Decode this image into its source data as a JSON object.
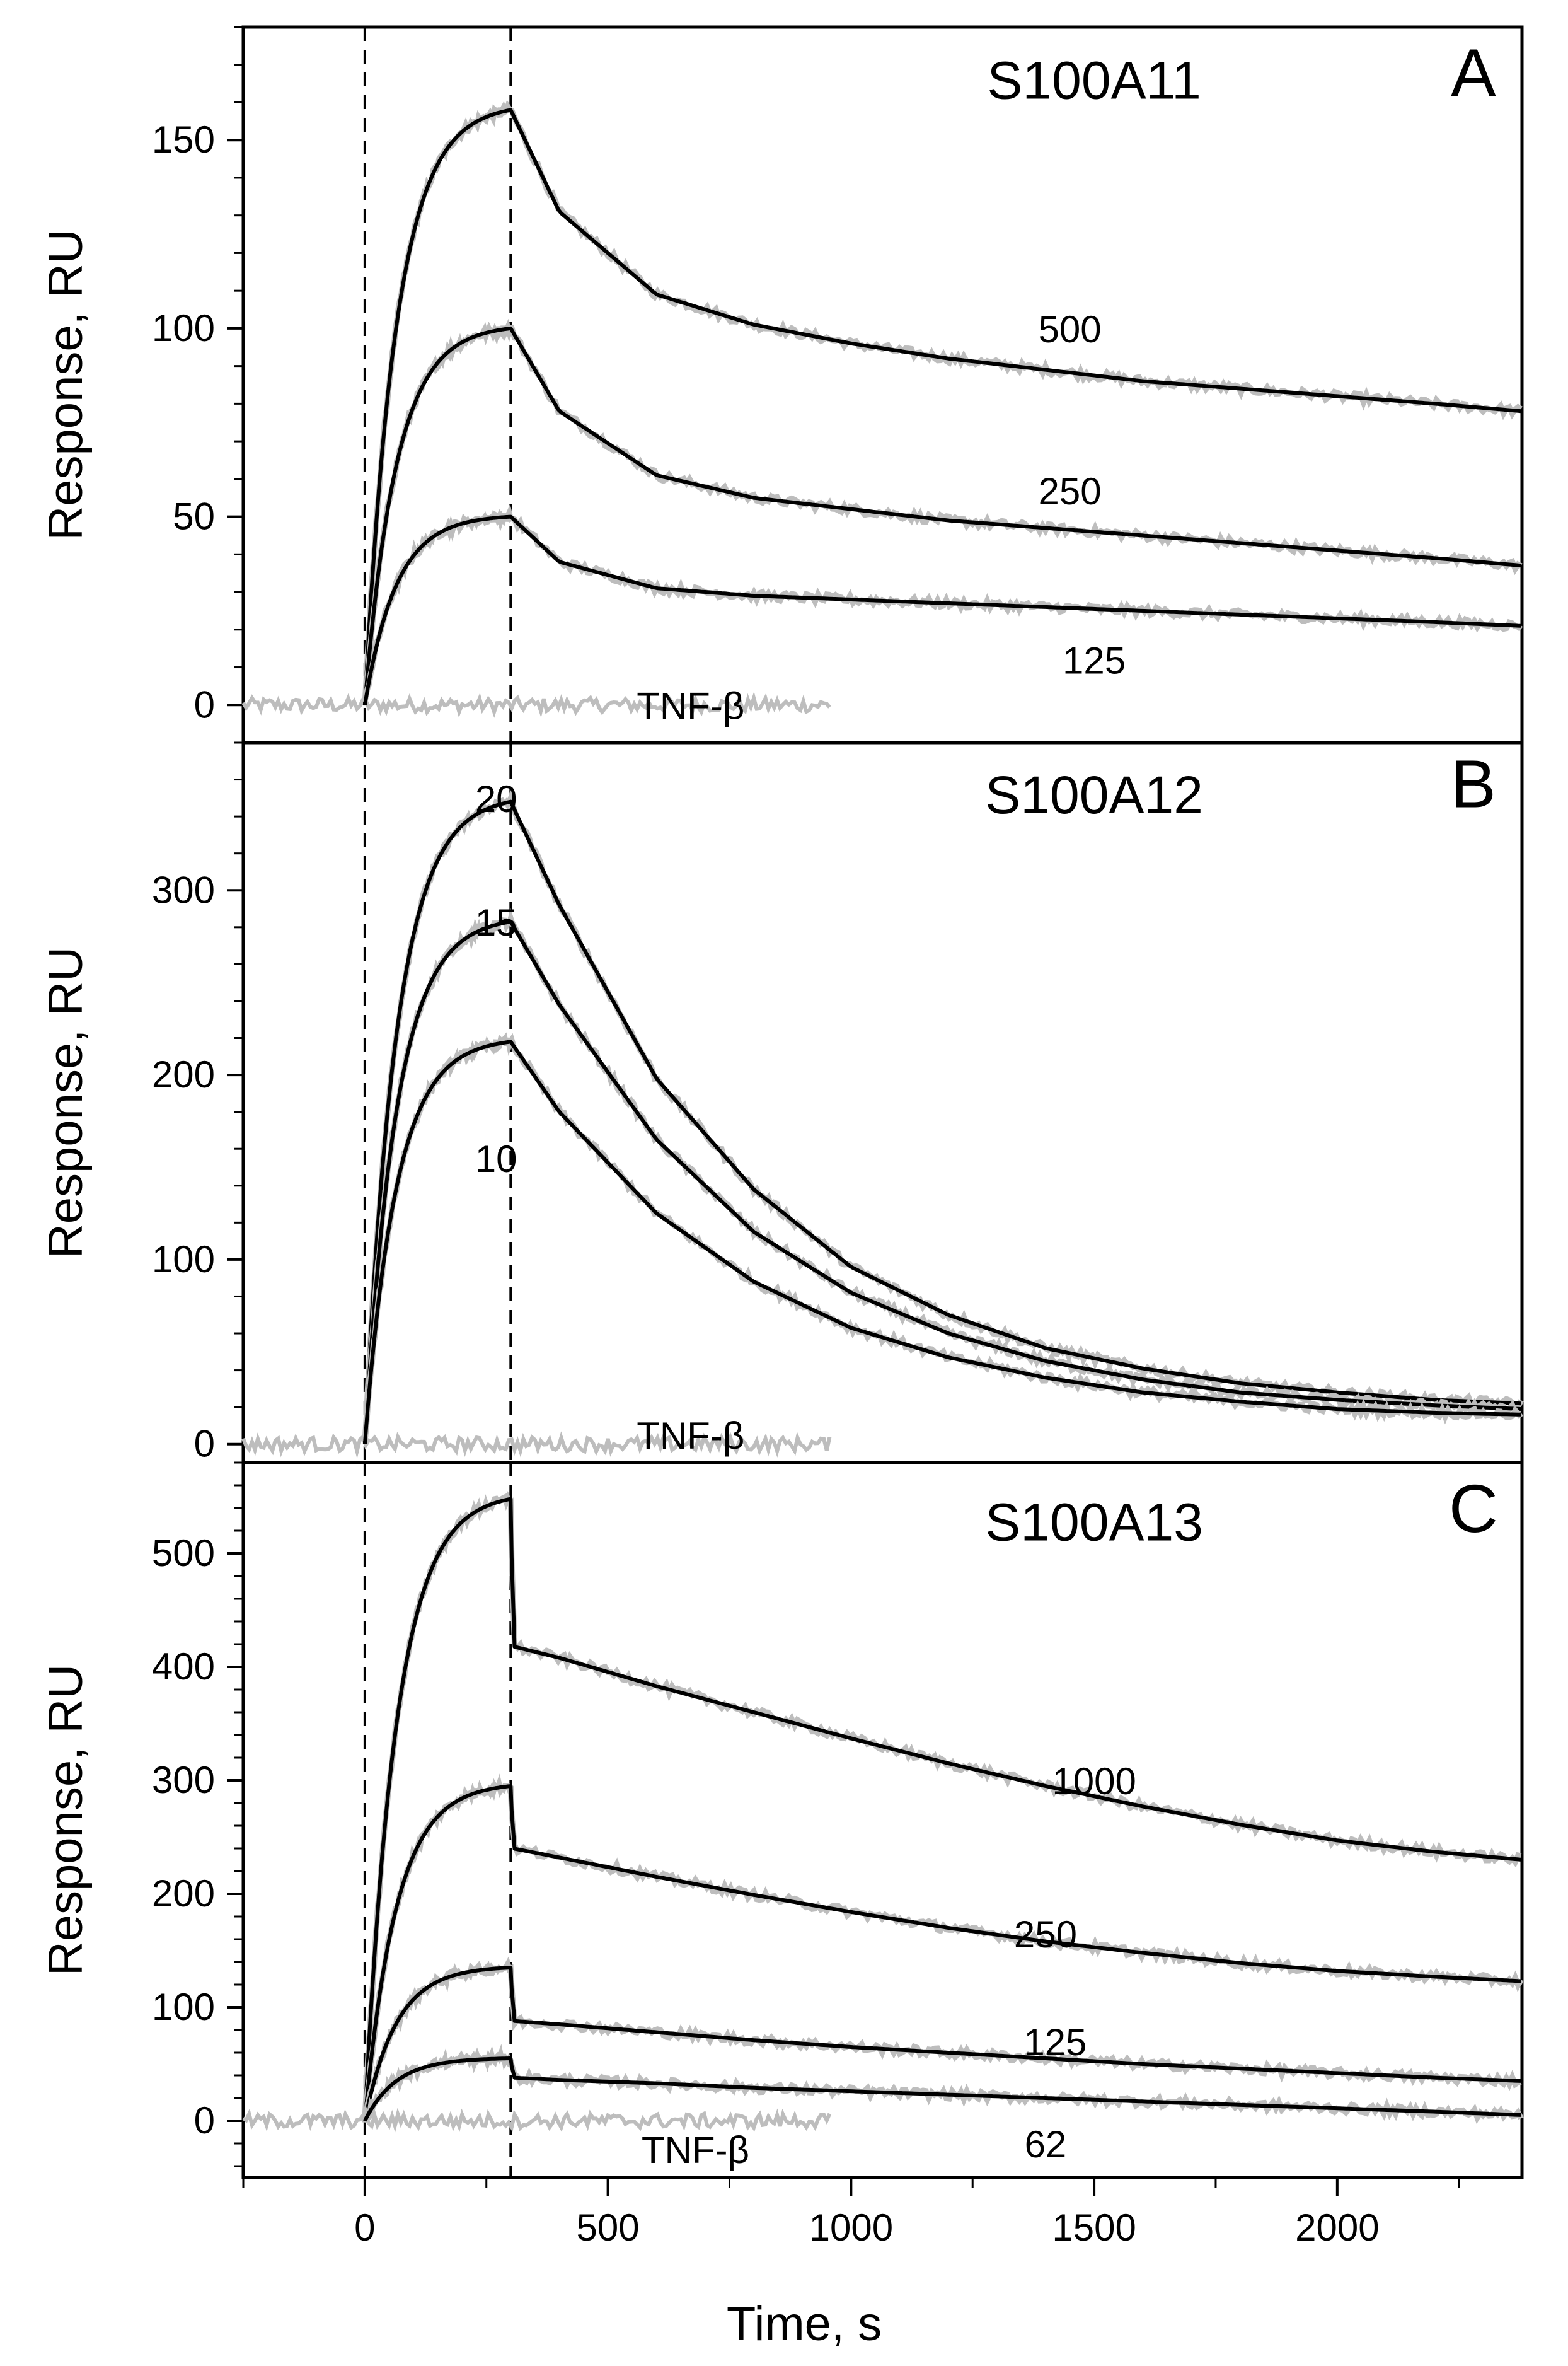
{
  "figure": {
    "xlabel": "Time, s",
    "xticks": [
      0,
      500,
      1000,
      1500,
      2000
    ]
  },
  "chart_data": [
    {
      "type": "line",
      "panel": "A",
      "title": "S100A11",
      "ylabel": "Response, RU",
      "xlim": [
        -250,
        2380
      ],
      "ylim": [
        -10,
        180
      ],
      "yticks": [
        0,
        50,
        100,
        150
      ],
      "injection_start": 0,
      "injection_end": 300,
      "baseline_label": "TNF-β",
      "series": [
        {
          "label": "500",
          "peak": 158,
          "x": [
            0,
            300,
            400,
            600,
            800,
            1000,
            1200,
            1400,
            1600,
            1800,
            2000,
            2200,
            2380
          ],
          "y": [
            0,
            158,
            131,
            109,
            101,
            96,
            92,
            89,
            86,
            84,
            82,
            80,
            78
          ]
        },
        {
          "label": "250",
          "peak": 100,
          "x": [
            0,
            300,
            400,
            600,
            800,
            1000,
            1200,
            1400,
            1600,
            1800,
            2000,
            2200,
            2380
          ],
          "y": [
            0,
            100,
            78,
            61,
            55,
            52,
            49,
            47,
            45,
            43,
            41,
            39,
            37
          ]
        },
        {
          "label": "125",
          "peak": 50,
          "x": [
            0,
            300,
            400,
            600,
            800,
            1000,
            1200,
            1400,
            1600,
            1800,
            2000,
            2200,
            2380
          ],
          "y": [
            0,
            50,
            38,
            31,
            29,
            28,
            27,
            26,
            25,
            24,
            23,
            22,
            21
          ]
        }
      ]
    },
    {
      "type": "line",
      "panel": "B",
      "title": "S100A12",
      "ylabel": "Response, RU",
      "xlim": [
        -250,
        2380
      ],
      "ylim": [
        -10,
        380
      ],
      "yticks": [
        0,
        100,
        200,
        300
      ],
      "injection_start": 0,
      "injection_end": 300,
      "baseline_label": "TNF-β",
      "series": [
        {
          "label": "20",
          "peak": 348,
          "x": [
            0,
            300,
            400,
            600,
            800,
            1000,
            1200,
            1400,
            1600,
            1800,
            2000,
            2200,
            2380
          ],
          "y": [
            0,
            348,
            292,
            198,
            138,
            96,
            70,
            52,
            41,
            33,
            28,
            24,
            22
          ]
        },
        {
          "label": "15",
          "peak": 283,
          "x": [
            0,
            300,
            400,
            600,
            800,
            1000,
            1200,
            1400,
            1600,
            1800,
            2000,
            2200,
            2380
          ],
          "y": [
            0,
            283,
            238,
            165,
            115,
            82,
            60,
            45,
            35,
            28,
            24,
            21,
            19
          ]
        },
        {
          "label": "10",
          "peak": 218,
          "x": [
            0,
            300,
            400,
            600,
            800,
            1000,
            1200,
            1400,
            1600,
            1800,
            2000,
            2200,
            2380
          ],
          "y": [
            0,
            218,
            180,
            125,
            88,
            63,
            47,
            36,
            28,
            23,
            19,
            17,
            16
          ]
        }
      ]
    },
    {
      "type": "line",
      "panel": "C",
      "title": "S100A13",
      "ylabel": "Response, RU",
      "xlim": [
        -250,
        2380
      ],
      "ylim": [
        -50,
        580
      ],
      "yticks": [
        0,
        100,
        200,
        300,
        400,
        500
      ],
      "injection_start": 0,
      "injection_end": 300,
      "baseline_label": "TNF-β",
      "series": [
        {
          "label": "1000",
          "peak": 548,
          "x": [
            0,
            300,
            305,
            400,
            600,
            800,
            1000,
            1200,
            1400,
            1600,
            1800,
            2000,
            2200,
            2380
          ],
          "y": [
            0,
            548,
            418,
            408,
            383,
            360,
            337,
            315,
            295,
            277,
            261,
            247,
            237,
            230
          ]
        },
        {
          "label": "250",
          "peak": 295,
          "x": [
            0,
            300,
            305,
            400,
            600,
            800,
            1000,
            1200,
            1400,
            1600,
            1800,
            2000,
            2200,
            2380
          ],
          "y": [
            0,
            295,
            240,
            232,
            215,
            199,
            184,
            170,
            158,
            148,
            139,
            132,
            127,
            123
          ]
        },
        {
          "label": "125",
          "peak": 135,
          "x": [
            0,
            300,
            305,
            400,
            600,
            800,
            1000,
            1200,
            1400,
            1600,
            1800,
            2000,
            2200,
            2380
          ],
          "y": [
            0,
            135,
            88,
            85,
            78,
            71,
            65,
            60,
            55,
            50,
            46,
            42,
            38,
            35
          ]
        },
        {
          "label": "62",
          "peak": 55,
          "x": [
            0,
            300,
            305,
            400,
            600,
            800,
            1000,
            1200,
            1400,
            1600,
            1800,
            2000,
            2200,
            2380
          ],
          "y": [
            0,
            55,
            38,
            36,
            33,
            29,
            26,
            23,
            20,
            17,
            14,
            11,
            8,
            5
          ]
        }
      ]
    }
  ]
}
